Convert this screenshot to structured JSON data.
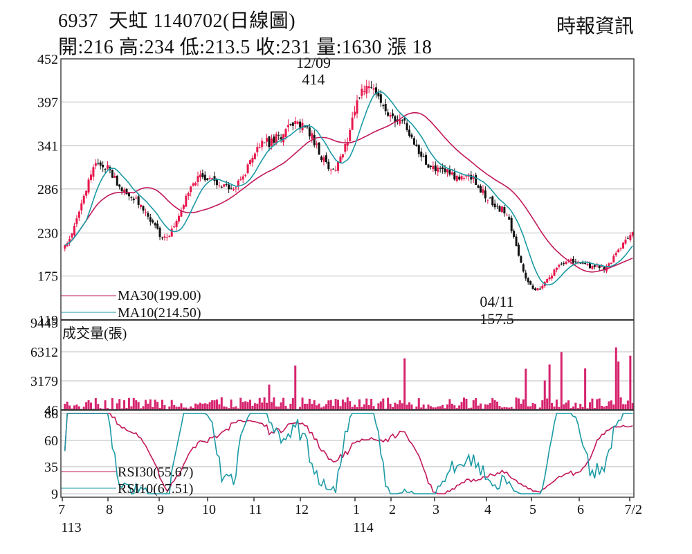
{
  "header": {
    "code": "6937",
    "name": "天虹",
    "date_label": "1140702(日線圖)",
    "open_label": "開:216",
    "high_label": "高:234",
    "low_label": "低:213.5",
    "close_label": "收:231",
    "volume_label": "量:1630",
    "change_label": "漲 18",
    "publisher": "時報資訊"
  },
  "colors": {
    "up": "#e8174d",
    "down": "#111111",
    "ma30": "#c2185b",
    "ma10": "#1a9aa5",
    "volume": "#d6246e",
    "grid": "#bfbfbf",
    "frame": "#444444"
  },
  "chart_data": [
    {
      "type": "candlestick",
      "yticks": [
        "452",
        "397",
        "341",
        "286",
        "230",
        "175",
        "119"
      ],
      "ylim": [
        119,
        452
      ],
      "annotations": [
        {
          "date": "12/09",
          "value": "414"
        },
        {
          "date": "04/11",
          "value": "157.5"
        }
      ],
      "legend": [
        {
          "name": "MA30(199.00)",
          "color": "#c2185b"
        },
        {
          "name": "MA10(214.50)",
          "color": "#1a9aa5"
        }
      ],
      "key_points": [
        {
          "month": "7",
          "close": 215
        },
        {
          "month": "7",
          "close": 320
        },
        {
          "month": "8",
          "close": 275
        },
        {
          "month": "8",
          "close": 225
        },
        {
          "month": "9",
          "close": 300
        },
        {
          "month": "10",
          "close": 290
        },
        {
          "month": "10",
          "close": 345
        },
        {
          "month": "11",
          "close": 370
        },
        {
          "month": "11",
          "close": 310
        },
        {
          "month": "12",
          "close": 414
        },
        {
          "month": "1",
          "close": 370
        },
        {
          "month": "1",
          "close": 310
        },
        {
          "month": "2",
          "close": 300
        },
        {
          "month": "3",
          "close": 260
        },
        {
          "month": "4",
          "close": 157.5
        },
        {
          "month": "5",
          "close": 195
        },
        {
          "month": "6",
          "close": 185
        },
        {
          "month": "7/2",
          "close": 231
        }
      ]
    },
    {
      "type": "bar",
      "title": "成交量(張)",
      "yticks": [
        "9445",
        "6312",
        "3179",
        "46"
      ],
      "ylim": [
        46,
        9445
      ]
    },
    {
      "type": "line",
      "yticks": [
        "86",
        "60",
        "35",
        "9"
      ],
      "ylim": [
        9,
        86
      ],
      "legend": [
        {
          "name": "RSI30(55.67)",
          "color": "#c2185b"
        },
        {
          "name": "RSI10(67.51)",
          "color": "#1a9aa5"
        }
      ]
    }
  ],
  "xaxis": {
    "months": [
      "7",
      "8",
      "9",
      "10",
      "11",
      "12",
      "1",
      "2",
      "3",
      "4",
      "5",
      "6",
      "7/2"
    ],
    "year_labels": [
      "113",
      "114"
    ]
  }
}
